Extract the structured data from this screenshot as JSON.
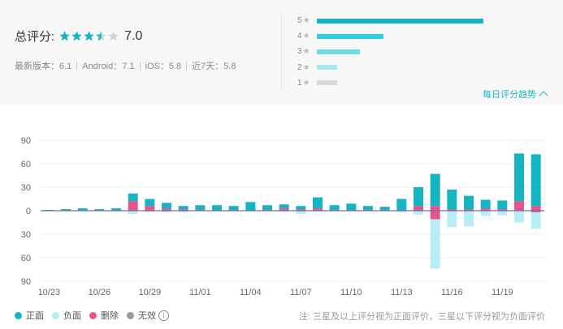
{
  "score": {
    "label": "总评分:",
    "value": "7.0",
    "stars": [
      1,
      1,
      1,
      0.5,
      0
    ]
  },
  "versions": [
    "最新版本：6.1",
    "Android：7.1",
    "iOS：5.8",
    "近7天：5.8"
  ],
  "distribution": [
    {
      "label": "5",
      "fraction": 1.0,
      "color": "#15b3c4"
    },
    {
      "label": "4",
      "fraction": 0.4,
      "color": "#33cfe0"
    },
    {
      "label": "3",
      "fraction": 0.26,
      "color": "#6adcea"
    },
    {
      "label": "2",
      "fraction": 0.12,
      "color": "#a8e9f1"
    },
    {
      "label": "1",
      "fraction": 0.12,
      "color": "#d9d9d9"
    }
  ],
  "trend_link": "每日评分趋势",
  "colors": {
    "positive": "#14b4c3",
    "negative": "#b7eef6",
    "deleted": "#e8538a",
    "invalid": "#999999"
  },
  "chart_data": {
    "type": "bar",
    "stacked": true,
    "ylim": [
      -90,
      90
    ],
    "y_ticks": [
      "90",
      "60",
      "30",
      "0",
      "30",
      "60",
      "90"
    ],
    "x_ticks": [
      "10/23",
      "10/26",
      "10/29",
      "11/01",
      "11/04",
      "11/07",
      "11/10",
      "11/13",
      "11/16",
      "11/19"
    ],
    "categories": [
      "10/23",
      "10/24",
      "10/25",
      "10/26",
      "10/27",
      "10/28",
      "10/29",
      "10/30",
      "10/31",
      "11/01",
      "11/02",
      "11/03",
      "11/04",
      "11/05",
      "11/06",
      "11/07",
      "11/08",
      "11/09",
      "11/10",
      "11/11",
      "11/12",
      "11/13",
      "11/14",
      "11/15",
      "11/16",
      "11/17",
      "11/18",
      "11/19",
      "11/20",
      "11/21"
    ],
    "series": [
      {
        "name": "正面",
        "values": [
          1,
          2,
          3,
          2,
          3,
          10,
          9,
          7,
          4,
          6,
          7,
          5,
          11,
          6,
          5,
          4,
          14,
          6,
          8,
          5,
          4,
          14,
          24,
          41,
          25,
          17,
          11,
          11,
          61,
          66
        ]
      },
      {
        "name": "删除",
        "values": [
          0,
          0,
          0,
          0,
          0,
          12,
          6,
          3,
          2,
          1,
          0,
          1,
          0,
          1,
          3,
          2,
          3,
          1,
          1,
          1,
          1,
          1,
          6,
          6,
          2,
          2,
          3,
          2,
          12,
          6
        ]
      },
      {
        "name": "负面",
        "values": [
          0,
          0,
          0,
          0,
          0,
          -4,
          -2,
          -2,
          -2,
          0,
          0,
          0,
          0,
          0,
          -1,
          -4,
          -1,
          0,
          0,
          0,
          0,
          -2,
          -5,
          -63,
          -21,
          -20,
          -7,
          -6,
          -15,
          -21
        ]
      },
      {
        "name": "无效",
        "values": [
          0,
          0,
          0,
          0,
          0,
          0,
          0,
          0,
          0,
          0,
          0,
          0,
          0,
          0,
          0,
          0,
          0,
          0,
          0,
          0,
          0,
          0,
          0,
          -11,
          0,
          0,
          0,
          0,
          0,
          -2
        ]
      }
    ]
  },
  "legend": [
    {
      "label": "正面",
      "color": "#14b4c3"
    },
    {
      "label": "负面",
      "color": "#b7eef6"
    },
    {
      "label": "删除",
      "color": "#e8538a"
    },
    {
      "label": "无效",
      "color": "#999999"
    }
  ],
  "info_icon": "i",
  "note": "注: 三星及以上评分视为正面评价，三星以下评分视为负面评价"
}
